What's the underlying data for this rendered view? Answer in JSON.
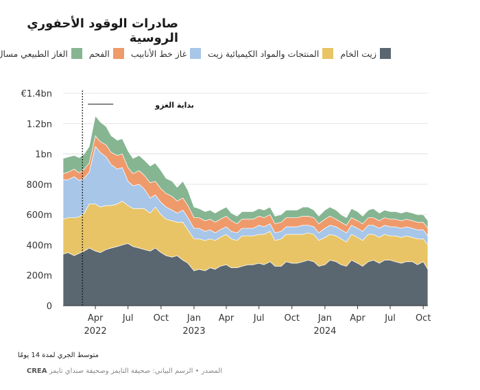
{
  "title": "صادرات الوقود الأحفوري الروسية",
  "note": "متوسط الجري لمدة 14 يومًا",
  "source": {
    "label": "المصدر",
    "separator": "•",
    "graphic_credit": "الرسم البياني: صحيفة التايمز وصحيفة صنداي تايمز",
    "data_source": "CREA"
  },
  "chart_data": {
    "type": "area",
    "stacked": true,
    "unit": "EUR per day",
    "x_range": [
      "2022-01-01",
      "2024-10-14"
    ],
    "ylim": [
      0,
      1400000000
    ],
    "y_ticks": [
      0,
      200000000,
      400000000,
      600000000,
      800000000,
      1000000000,
      1200000000,
      1400000000
    ],
    "y_tick_labels": [
      "0",
      "200m",
      "400m",
      "600m",
      "800m",
      "1bn",
      "1.2bn",
      "€1.4bn"
    ],
    "x_ticks": [
      {
        "date": "2022-04-01",
        "label": "Apr",
        "year": "2022"
      },
      {
        "date": "2022-07-01",
        "label": "Jul",
        "year": ""
      },
      {
        "date": "2022-10-01",
        "label": "Oct",
        "year": ""
      },
      {
        "date": "2023-01-01",
        "label": "Jan",
        "year": "2023"
      },
      {
        "date": "2023-04-01",
        "label": "Apr",
        "year": ""
      },
      {
        "date": "2023-07-01",
        "label": "Jul",
        "year": ""
      },
      {
        "date": "2023-10-01",
        "label": "Oct",
        "year": ""
      },
      {
        "date": "2024-01-01",
        "label": "Jan",
        "year": "2024"
      },
      {
        "date": "2024-04-01",
        "label": "Apr",
        "year": ""
      },
      {
        "date": "2024-07-01",
        "label": "Jul",
        "year": ""
      },
      {
        "date": "2024-10-01",
        "label": "Oct",
        "year": ""
      }
    ],
    "grid": true,
    "legend_position": "top",
    "annotation": {
      "date": "2022-02-24",
      "label": "بداية الغزو"
    },
    "dates": [
      "2022-01-01",
      "2022-01-15",
      "2022-02-01",
      "2022-02-15",
      "2022-03-01",
      "2022-03-15",
      "2022-04-01",
      "2022-04-15",
      "2022-05-01",
      "2022-05-15",
      "2022-06-01",
      "2022-06-15",
      "2022-07-01",
      "2022-07-15",
      "2022-08-01",
      "2022-08-15",
      "2022-09-01",
      "2022-09-15",
      "2022-10-01",
      "2022-10-15",
      "2022-11-01",
      "2022-11-15",
      "2022-12-01",
      "2022-12-15",
      "2023-01-01",
      "2023-01-15",
      "2023-02-01",
      "2023-02-15",
      "2023-03-01",
      "2023-03-15",
      "2023-04-01",
      "2023-04-15",
      "2023-05-01",
      "2023-05-15",
      "2023-06-01",
      "2023-06-15",
      "2023-07-01",
      "2023-07-15",
      "2023-08-01",
      "2023-08-15",
      "2023-09-01",
      "2023-09-15",
      "2023-10-01",
      "2023-10-15",
      "2023-11-01",
      "2023-11-15",
      "2023-12-01",
      "2023-12-15",
      "2024-01-01",
      "2024-01-15",
      "2024-02-01",
      "2024-02-15",
      "2024-03-01",
      "2024-03-15",
      "2024-04-01",
      "2024-04-15",
      "2024-05-01",
      "2024-05-15",
      "2024-06-01",
      "2024-06-15",
      "2024-07-01",
      "2024-07-15",
      "2024-08-01",
      "2024-08-15",
      "2024-09-01",
      "2024-09-15",
      "2024-10-01",
      "2024-10-14"
    ],
    "series": [
      {
        "name": "زيت الخام",
        "color": "#5b6770",
        "values": [
          340,
          350,
          330,
          345,
          360,
          380,
          360,
          350,
          370,
          380,
          390,
          400,
          410,
          390,
          380,
          370,
          360,
          380,
          350,
          330,
          320,
          330,
          300,
          280,
          230,
          240,
          230,
          250,
          240,
          260,
          270,
          250,
          250,
          260,
          270,
          270,
          280,
          270,
          290,
          260,
          260,
          290,
          280,
          280,
          290,
          300,
          290,
          260,
          270,
          300,
          290,
          270,
          260,
          300,
          280,
          260,
          290,
          300,
          280,
          300,
          300,
          290,
          280,
          290,
          290,
          270,
          290,
          240
        ]
      },
      {
        "name": "المنتجات والمواد الكيميائية زيت",
        "color": "#e8c466",
        "values": [
          230,
          230,
          250,
          240,
          250,
          290,
          310,
          300,
          290,
          280,
          280,
          290,
          250,
          250,
          260,
          270,
          250,
          270,
          250,
          240,
          240,
          220,
          250,
          220,
          210,
          200,
          200,
          190,
          190,
          190,
          200,
          190,
          180,
          200,
          190,
          190,
          190,
          200,
          200,
          170,
          180,
          180,
          190,
          190,
          180,
          180,
          180,
          170,
          180,
          170,
          170,
          170,
          160,
          170,
          170,
          170,
          180,
          170,
          170,
          170,
          160,
          170,
          170,
          170,
          160,
          170,
          150,
          160
        ]
      },
      {
        "name": "غاز خط الأنابيب",
        "color": "#a7c6e8",
        "values": [
          260,
          250,
          270,
          240,
          230,
          210,
          380,
          360,
          320,
          270,
          230,
          220,
          160,
          150,
          160,
          130,
          100,
          80,
          80,
          80,
          70,
          60,
          80,
          80,
          70,
          70,
          60,
          60,
          50,
          50,
          50,
          50,
          50,
          50,
          50,
          50,
          60,
          50,
          50,
          50,
          50,
          50,
          50,
          50,
          60,
          50,
          50,
          50,
          60,
          60,
          60,
          60,
          60,
          60,
          60,
          60,
          60,
          60,
          60,
          60,
          60,
          60,
          60,
          60,
          60,
          60,
          60,
          60
        ]
      },
      {
        "name": "الفحم",
        "color": "#ef9a6b",
        "values": [
          40,
          50,
          50,
          50,
          60,
          60,
          70,
          70,
          80,
          80,
          90,
          90,
          90,
          80,
          90,
          90,
          100,
          90,
          90,
          90,
          90,
          80,
          80,
          80,
          70,
          70,
          70,
          70,
          70,
          70,
          70,
          70,
          60,
          60,
          60,
          60,
          60,
          60,
          60,
          60,
          60,
          60,
          60,
          60,
          60,
          60,
          60,
          60,
          60,
          60,
          50,
          50,
          50,
          50,
          50,
          50,
          50,
          50,
          50,
          50,
          50,
          50,
          50,
          50,
          50,
          50,
          50,
          50
        ]
      },
      {
        "name": "الغاز الطبيعي مسال",
        "color": "#86b592",
        "values": [
          100,
          100,
          90,
          100,
          100,
          110,
          130,
          130,
          120,
          110,
          100,
          100,
          110,
          100,
          100,
          100,
          110,
          120,
          120,
          100,
          100,
          90,
          110,
          100,
          70,
          60,
          60,
          60,
          60,
          60,
          60,
          50,
          50,
          50,
          50,
          50,
          50,
          50,
          50,
          50,
          50,
          50,
          50,
          50,
          60,
          60,
          50,
          50,
          60,
          60,
          60,
          50,
          50,
          60,
          60,
          50,
          50,
          60,
          50,
          50,
          50,
          50,
          50,
          50,
          50,
          50,
          50,
          50
        ]
      }
    ]
  }
}
